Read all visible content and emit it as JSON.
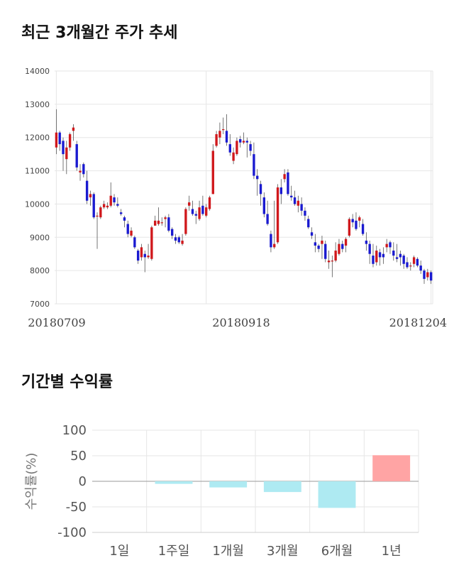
{
  "titles": {
    "price_trend": "최근 3개월간 주가 추세",
    "returns": "기간별 수익률"
  },
  "colors": {
    "up": "#d0181c",
    "down": "#1a1ad0",
    "wick": "#555555",
    "positive_bar": "#ffa4a4",
    "negative_bar": "#aeeaf2",
    "grid": "#e6e6e6"
  },
  "chart_data": [
    {
      "type": "candlestick",
      "title": "최근 3개월간 주가 추세",
      "ylim": [
        7000,
        14000
      ],
      "yticks": [
        "14000",
        "13000",
        "12000",
        "11000",
        "10000",
        "9000",
        "8000",
        "7000"
      ],
      "xticks": [
        "20180709",
        "20180918",
        "20181204"
      ],
      "grid": true,
      "candles": [
        [
          11700,
          12150,
          12850,
          11500
        ],
        [
          12150,
          11800,
          12200,
          11600
        ],
        [
          11900,
          11500,
          12000,
          11000
        ],
        [
          11350,
          11700,
          11900,
          10900
        ],
        [
          11700,
          12100,
          12150,
          11600
        ],
        [
          12200,
          12300,
          12400,
          11900
        ],
        [
          11800,
          11100,
          11900,
          11000
        ],
        [
          10950,
          11000,
          11200,
          10700
        ],
        [
          11200,
          10900,
          11250,
          10800
        ],
        [
          10700,
          10100,
          11000,
          10000
        ],
        [
          10200,
          10300,
          10400,
          9950
        ],
        [
          10300,
          9600,
          10350,
          9550
        ],
        [
          9650,
          9650,
          9750,
          8650
        ],
        [
          9600,
          9900,
          9950,
          9550
        ],
        [
          9900,
          10000,
          10100,
          9850
        ],
        [
          9900,
          9950,
          10050,
          9850
        ],
        [
          9950,
          10250,
          10650,
          9900
        ],
        [
          10200,
          10050,
          10300,
          9950
        ],
        [
          10000,
          9950,
          10200,
          9900
        ],
        [
          9750,
          9700,
          9850,
          9650
        ],
        [
          9600,
          9500,
          9650,
          9300
        ],
        [
          9400,
          9100,
          9500,
          9000
        ],
        [
          9050,
          9200,
          9300,
          9000
        ],
        [
          9000,
          8700,
          9050,
          8650
        ],
        [
          8600,
          8300,
          8650,
          8200
        ],
        [
          8400,
          8700,
          8800,
          8300
        ],
        [
          8500,
          8400,
          8600,
          7950
        ],
        [
          8400,
          8450,
          8800,
          8350
        ],
        [
          8350,
          9300,
          9350,
          8300
        ],
        [
          9350,
          9500,
          9650,
          9350
        ],
        [
          9400,
          9500,
          9900,
          9350
        ],
        [
          9450,
          9450,
          9600,
          9350
        ],
        [
          9550,
          9600,
          9650,
          9300
        ],
        [
          9600,
          9200,
          9700,
          9150
        ],
        [
          9250,
          9050,
          9300,
          8950
        ],
        [
          9000,
          8900,
          9100,
          8800
        ],
        [
          9000,
          8850,
          9050,
          8800
        ],
        [
          8800,
          8900,
          9100,
          8750
        ],
        [
          9100,
          9850,
          9900,
          9050
        ],
        [
          9950,
          10050,
          10250,
          9800
        ],
        [
          9850,
          9700,
          10100,
          9650
        ],
        [
          9700,
          9650,
          9800,
          9400
        ],
        [
          9550,
          9900,
          10100,
          9500
        ],
        [
          9950,
          9700,
          10250,
          9650
        ],
        [
          9650,
          9900,
          10000,
          9600
        ],
        [
          9850,
          10200,
          10250,
          9800
        ],
        [
          10300,
          11600,
          11800,
          10300
        ],
        [
          11750,
          12100,
          12200,
          11700
        ],
        [
          12000,
          12200,
          12450,
          11800
        ],
        [
          12250,
          12250,
          12600,
          12100
        ],
        [
          12200,
          11850,
          12700,
          11750
        ],
        [
          11800,
          11550,
          12100,
          11450
        ],
        [
          11300,
          11550,
          11700,
          11200
        ],
        [
          11500,
          11900,
          12000,
          11450
        ],
        [
          11950,
          11850,
          12050,
          11700
        ],
        [
          11850,
          11900,
          12150,
          11800
        ],
        [
          11900,
          11850,
          12000,
          11400
        ],
        [
          11800,
          11600,
          11900,
          11450
        ],
        [
          11500,
          10850,
          11850,
          10750
        ],
        [
          10850,
          10750,
          11050,
          10250
        ],
        [
          10600,
          10300,
          10700,
          9950
        ],
        [
          10200,
          9700,
          10350,
          9600
        ],
        [
          9700,
          9400,
          10100,
          9350
        ],
        [
          9100,
          8700,
          9200,
          8550
        ],
        [
          8700,
          8800,
          10100,
          8650
        ],
        [
          8850,
          10500,
          10600,
          8800
        ],
        [
          10500,
          10300,
          10750,
          10000
        ],
        [
          10750,
          10900,
          11050,
          10650
        ],
        [
          10950,
          10300,
          11050,
          10250
        ],
        [
          10250,
          10200,
          10550,
          10100
        ],
        [
          10200,
          10000,
          10400,
          9950
        ],
        [
          9950,
          10100,
          10250,
          9750
        ],
        [
          10000,
          9800,
          10200,
          9650
        ],
        [
          9800,
          9650,
          9900,
          9500
        ],
        [
          9550,
          9300,
          9650,
          9250
        ],
        [
          9150,
          9050,
          9300,
          8950
        ],
        [
          8850,
          8750,
          9100,
          8550
        ],
        [
          8750,
          8650,
          8800,
          8550
        ],
        [
          8800,
          8900,
          9050,
          8350
        ],
        [
          8800,
          8350,
          8900,
          8250
        ],
        [
          8250,
          8300,
          8600,
          8050
        ],
        [
          8300,
          8300,
          8450,
          7800
        ],
        [
          8300,
          8600,
          8850,
          8250
        ],
        [
          8500,
          8800,
          8950,
          8450
        ],
        [
          8800,
          8650,
          8900,
          8550
        ],
        [
          8750,
          8950,
          9000,
          8550
        ],
        [
          9050,
          9550,
          9600,
          9000
        ],
        [
          9550,
          9450,
          9700,
          9300
        ],
        [
          9500,
          9250,
          9750,
          9200
        ],
        [
          9500,
          9600,
          9650,
          9300
        ],
        [
          9400,
          9100,
          9550,
          9050
        ],
        [
          8900,
          8800,
          9150,
          8600
        ],
        [
          8800,
          8500,
          8900,
          8200
        ],
        [
          8450,
          8200,
          8800,
          8100
        ],
        [
          8250,
          8600,
          8750,
          8150
        ],
        [
          8550,
          8400,
          8650,
          8150
        ],
        [
          8500,
          8400,
          8700,
          8200
        ],
        [
          8700,
          8800,
          8950,
          8550
        ],
        [
          8850,
          8700,
          8900,
          8500
        ],
        [
          8600,
          8450,
          8850,
          8300
        ],
        [
          8400,
          8350,
          8800,
          8250
        ],
        [
          8500,
          8400,
          8600,
          8150
        ],
        [
          8450,
          8200,
          8500,
          8050
        ],
        [
          8250,
          8100,
          8400,
          8050
        ],
        [
          8150,
          8150,
          8250,
          8000
        ],
        [
          8200,
          8400,
          8450,
          8100
        ],
        [
          8350,
          8150,
          8400,
          8100
        ],
        [
          8150,
          8000,
          8300,
          7900
        ],
        [
          8000,
          7750,
          8050,
          7600
        ],
        [
          7800,
          7950,
          8050,
          7700
        ],
        [
          7950,
          7700,
          8000,
          7600
        ]
      ]
    },
    {
      "type": "bar",
      "title": "기간별 수익률",
      "categories": [
        "1일",
        "1주일",
        "1개월",
        "3개월",
        "6개월",
        "1년"
      ],
      "values": [
        0,
        -5,
        -12,
        -21,
        -52,
        51
      ],
      "ylabel": "수익률(%)",
      "ylim": [
        -100,
        100
      ],
      "yticks": [
        "100",
        "50",
        "0",
        "-50",
        "-100"
      ],
      "grid": true
    }
  ]
}
